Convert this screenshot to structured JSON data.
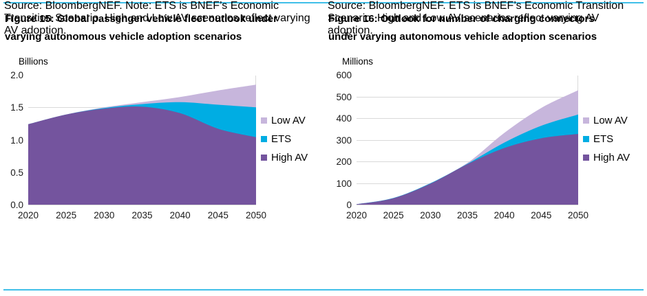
{
  "page": {
    "background": "#ffffff",
    "divider_color": "#3fbfe8",
    "gridline_color": "#d9d9d9"
  },
  "figures": [
    {
      "title_lines": [
        "Figure 15: Global passenger vehicle fleet outlook under",
        "varying autonomous vehicle adoption scenarios"
      ],
      "unit_label": "Billions",
      "source_lines": [
        "Source: BloombergNEF. Note: ETS is BNEF’s Economic",
        "Transition Scenario. High and Low AV scenarios reflect varying",
        "AV adoption."
      ],
      "chart_data": {
        "type": "area",
        "mode": "overlapping",
        "title": "Global passenger vehicle fleet outlook under varying autonomous vehicle adoption scenarios",
        "ylabel": "Billions",
        "x": [
          2020,
          2025,
          2030,
          2035,
          2040,
          2045,
          2050
        ],
        "x_tick_labels": [
          "2020",
          "2025",
          "2030",
          "2035",
          "2040",
          "2045",
          "2050"
        ],
        "ylim": [
          0,
          2.0
        ],
        "yticks": [
          0,
          0.5,
          1.0,
          1.5,
          2.0
        ],
        "ytick_labels": [
          "0.0",
          "0.5",
          "1.0",
          "1.5",
          "2.0"
        ],
        "grid": "horizontal",
        "legend_position": "right",
        "series": [
          {
            "name": "Low AV",
            "color": "#c7b6dc",
            "values": [
              1.25,
              1.4,
              1.51,
              1.59,
              1.67,
              1.77,
              1.86
            ]
          },
          {
            "name": "ETS",
            "color": "#00ade3",
            "values": [
              1.25,
              1.4,
              1.5,
              1.56,
              1.59,
              1.55,
              1.51
            ]
          },
          {
            "name": "High AV",
            "color": "#74549e",
            "values": [
              1.25,
              1.4,
              1.49,
              1.52,
              1.42,
              1.18,
              1.05
            ]
          }
        ]
      }
    },
    {
      "title_lines": [
        "Figure 16: Outlook for number of charging connectors",
        "under varying autonomous vehicle adoption scenarios"
      ],
      "unit_label": "Millions",
      "source_lines": [
        "Source: BloombergNEF. ETS is BNEF’s Economic Transition",
        "Scenario. High and Low AV scenarios reflect varying AV",
        "adoption."
      ],
      "chart_data": {
        "type": "area",
        "mode": "overlapping",
        "title": "Outlook for number of charging connectors under varying autonomous vehicle adoption scenarios",
        "ylabel": "Millions",
        "x": [
          2020,
          2025,
          2030,
          2035,
          2040,
          2045,
          2050
        ],
        "x_tick_labels": [
          "2020",
          "2025",
          "2030",
          "2035",
          "2040",
          "2045",
          "2050"
        ],
        "ylim": [
          0,
          600
        ],
        "yticks": [
          0,
          100,
          200,
          300,
          400,
          500,
          600
        ],
        "ytick_labels": [
          "0",
          "100",
          "200",
          "300",
          "400",
          "500",
          "600"
        ],
        "grid": "horizontal",
        "legend_position": "right",
        "series": [
          {
            "name": "Low AV",
            "color": "#c7b6dc",
            "values": [
              5,
              34,
              103,
              196,
              335,
              450,
              532
            ]
          },
          {
            "name": "ETS",
            "color": "#00ade3",
            "values": [
              5,
              34,
              102,
              192,
              290,
              368,
              420
            ]
          },
          {
            "name": "High AV",
            "color": "#74549e",
            "values": [
              5,
              33,
              100,
              190,
              265,
              310,
              330
            ]
          }
        ]
      }
    }
  ]
}
